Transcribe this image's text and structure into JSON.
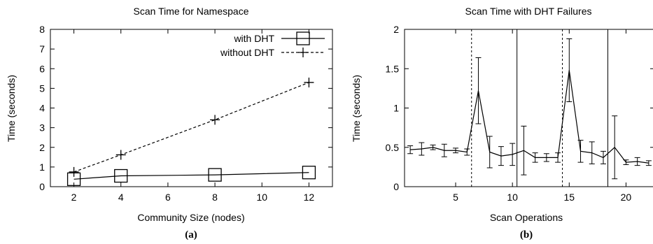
{
  "chart_data": [
    {
      "type": "line",
      "title": "Scan Time for Namespace",
      "xlabel": "Community Size (nodes)",
      "ylabel": "Time (seconds)",
      "sublabel": "(a)",
      "xlim": [
        1,
        13
      ],
      "ylim": [
        0,
        8
      ],
      "xticks": [
        2,
        4,
        6,
        8,
        10,
        12
      ],
      "yticks": [
        0,
        1,
        2,
        3,
        4,
        5,
        6,
        7,
        8
      ],
      "legend_position": "top-right",
      "series": [
        {
          "name": "with DHT",
          "marker": "square",
          "line": "solid",
          "x": [
            2,
            4,
            8,
            12
          ],
          "y": [
            0.38,
            0.55,
            0.6,
            0.72
          ]
        },
        {
          "name": "without DHT",
          "marker": "plus",
          "line": "dashed",
          "x": [
            2,
            4,
            8,
            12
          ],
          "y": [
            0.75,
            1.62,
            3.4,
            5.3
          ]
        }
      ]
    },
    {
      "type": "line",
      "title": "Scan Time with DHT Failures",
      "xlabel": "Scan Operations",
      "ylabel": "Time (seconds)",
      "sublabel": "(b)",
      "xlim": [
        0.5,
        22.5
      ],
      "ylim": [
        0,
        2
      ],
      "xticks": [
        5,
        10,
        15,
        20
      ],
      "yticks": [
        0,
        0.5,
        1,
        1.5,
        2
      ],
      "ytick_labels": [
        "0",
        "0.5",
        "1",
        "1.5",
        "2"
      ],
      "dashed_vlines": [
        6.4,
        14.4
      ],
      "solid_vlines": [
        10.4,
        18.4
      ],
      "series": [
        {
          "x": [
            1,
            2,
            3,
            4,
            5,
            6,
            7,
            8,
            9,
            10,
            11,
            12,
            13,
            14,
            15,
            16,
            17,
            18,
            19,
            20,
            21,
            22
          ],
          "y": [
            0.47,
            0.48,
            0.5,
            0.46,
            0.46,
            0.44,
            1.22,
            0.44,
            0.39,
            0.41,
            0.46,
            0.37,
            0.37,
            0.37,
            1.48,
            0.45,
            0.43,
            0.37,
            0.5,
            0.31,
            0.32,
            0.3
          ],
          "err": [
            0.05,
            0.08,
            0.03,
            0.08,
            0.03,
            0.04,
            0.42,
            0.2,
            0.12,
            0.14,
            0.31,
            0.06,
            0.05,
            0.06,
            0.4,
            0.14,
            0.14,
            0.08,
            0.4,
            0.03,
            0.05,
            0.03
          ]
        }
      ]
    }
  ]
}
